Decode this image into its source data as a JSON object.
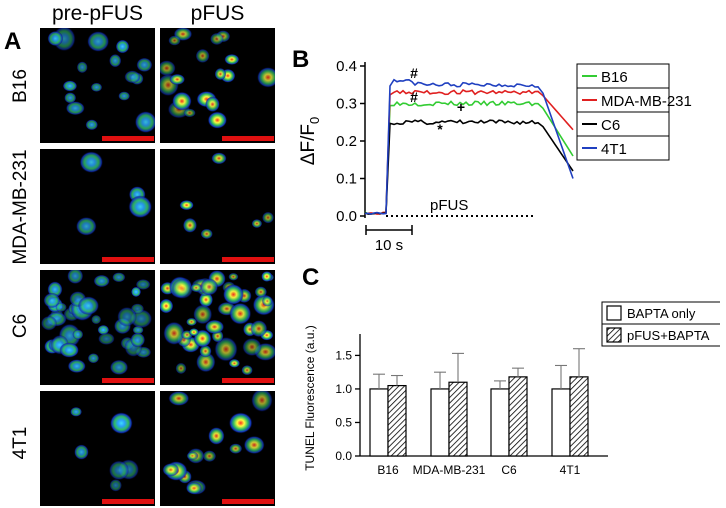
{
  "panel_a": {
    "letter": "A",
    "columns": [
      "pre-pFUS",
      "pFUS"
    ],
    "rows": [
      "B16",
      "MDA-MB-231",
      "C6",
      "4T1"
    ]
  },
  "panel_b": {
    "letter": "B"
  },
  "panel_c": {
    "letter": "C"
  },
  "colors": {
    "B16": "#33cc33",
    "MDA-MB-231": "#e02020",
    "C6": "#000000",
    "4T1": "#2040c0",
    "scale_bar": "#e01010"
  },
  "chart_data": [
    {
      "type": "line",
      "ylabel_main": "ΔF/F",
      "ylabel_sub": "0",
      "ylim": [
        0,
        0.4
      ],
      "yticks": [
        "0.0",
        "0.1",
        "0.2",
        "0.3",
        "0.4"
      ],
      "stimulus_label": "pFUS",
      "time_scale_label": "10 s",
      "legend": [
        "B16",
        "MDA-MB-231",
        "C6",
        "4T1"
      ],
      "annotations": [
        {
          "text": "#",
          "series": "4T1"
        },
        {
          "text": "#",
          "series": "MDA-MB-231"
        },
        {
          "text": "+",
          "series": "B16"
        },
        {
          "text": "*",
          "series": "C6"
        }
      ],
      "series": [
        {
          "name": "B16",
          "plateau": 0.3,
          "end": 0.16
        },
        {
          "name": "MDA-MB-231",
          "plateau": 0.33,
          "end": 0.23
        },
        {
          "name": "C6",
          "plateau": 0.25,
          "end": 0.12
        },
        {
          "name": "4T1",
          "plateau": 0.35,
          "end": 0.1
        }
      ]
    },
    {
      "type": "bar",
      "ylabel": "TUNEL Fluorescence (a.u.)",
      "ylim": [
        0,
        1.7
      ],
      "yticks": [
        "0.0",
        "0.5",
        "1.0",
        "1.5"
      ],
      "categories": [
        "B16",
        "MDA-MB-231",
        "C6",
        "4T1"
      ],
      "series": [
        {
          "name": "BAPTA only",
          "values": [
            1.0,
            1.0,
            1.0,
            1.0
          ],
          "errors": [
            0.22,
            0.25,
            0.12,
            0.35
          ]
        },
        {
          "name": "pFUS+BAPTA",
          "values": [
            1.05,
            1.1,
            1.18,
            1.18
          ],
          "errors": [
            0.15,
            0.43,
            0.13,
            0.42
          ]
        }
      ]
    }
  ]
}
